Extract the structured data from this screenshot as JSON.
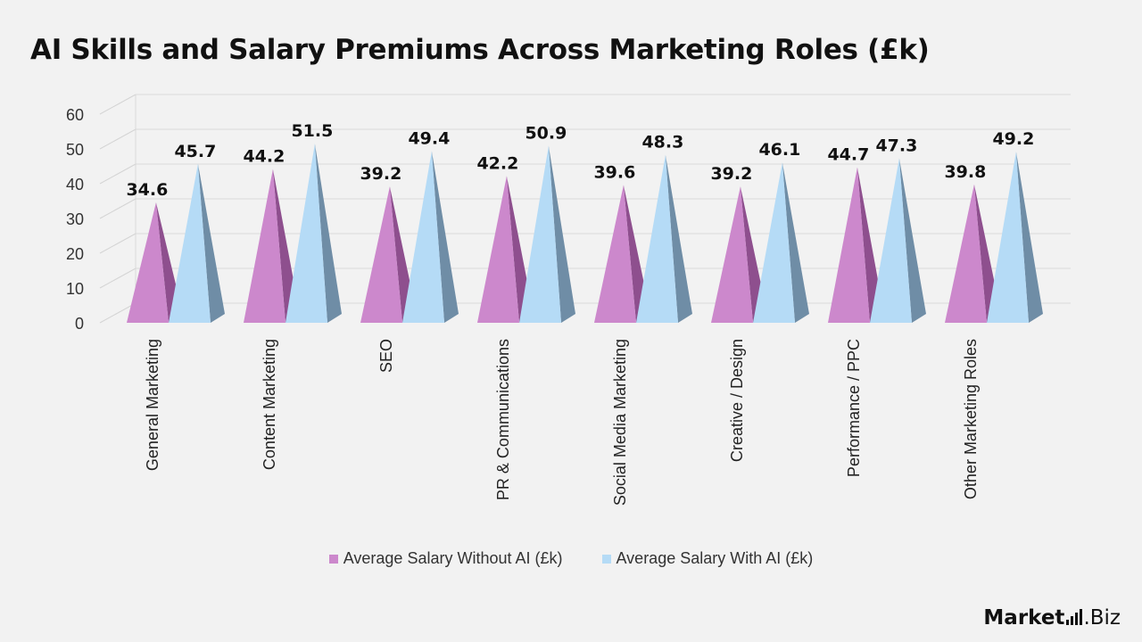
{
  "chart_data": {
    "type": "bar",
    "title": "AI Skills and Salary Premiums Across Marketing Roles (£k)",
    "categories": [
      "General Marketing",
      "Content Marketing",
      "SEO",
      "PR & Communications",
      "Social Media Marketing",
      "Creative / Design",
      "Performance / PPC",
      "Other Marketing Roles"
    ],
    "series": [
      {
        "name": "Average Salary Without AI (£k)",
        "values": [
          34.6,
          44.2,
          39.2,
          42.2,
          39.6,
          39.2,
          44.7,
          39.8
        ],
        "color": "#cc88cc",
        "shade": "#8e4f8e"
      },
      {
        "name": "Average Salary With AI (£k)",
        "values": [
          45.7,
          51.5,
          49.4,
          50.9,
          48.3,
          46.1,
          47.3,
          49.2
        ],
        "color": "#b5dbf6",
        "shade": "#6f8da6"
      }
    ],
    "yticks": [
      0,
      10,
      20,
      30,
      40,
      50,
      60
    ],
    "ylim": [
      0,
      60
    ],
    "grid": true,
    "legend": "bottom"
  },
  "logo": {
    "text_strong": "Market",
    "text_rest": ".Biz"
  }
}
